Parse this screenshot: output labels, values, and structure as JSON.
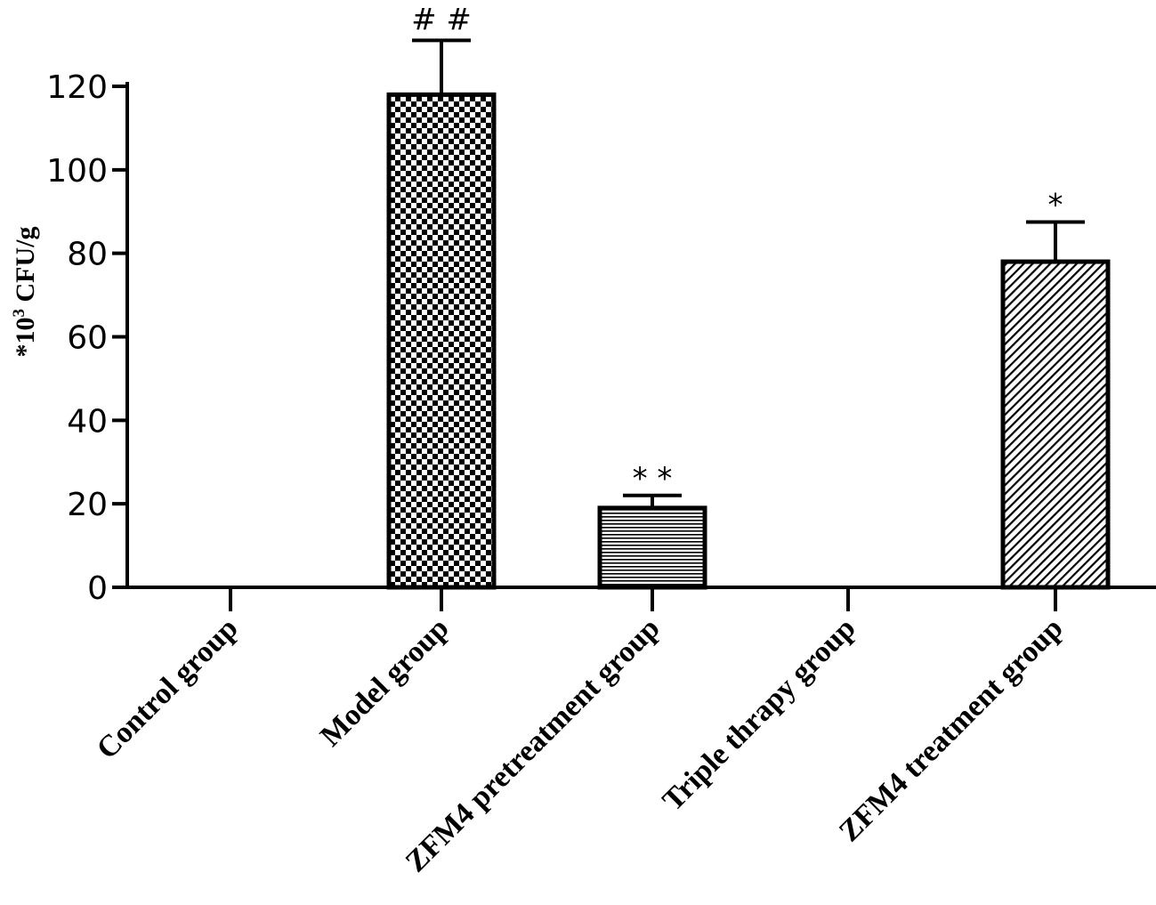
{
  "chart_data": {
    "type": "bar",
    "categories": [
      "Control group",
      "Model group",
      "ZFM4 pretreatment group",
      "Triple thrapy group",
      "ZFM4 treatment group"
    ],
    "values": [
      0,
      118,
      19,
      0,
      78
    ],
    "errors": [
      0,
      13,
      3,
      0,
      9.5
    ],
    "significance": [
      "",
      "# #",
      "* *",
      "",
      "*"
    ],
    "patterns": [
      "none",
      "checker",
      "horizontal-lines",
      "none",
      "diagonal-lines"
    ],
    "ylabel": "*10",
    "ylabel_sup": "3",
    "ylabel_unit": " CFU/g",
    "ylim": [
      0,
      120
    ],
    "yticks": [
      0,
      20,
      40,
      60,
      80,
      100,
      120
    ],
    "ytick_labels": [
      "0",
      "20",
      "40",
      "60",
      "80",
      "100",
      "120"
    ],
    "grid": false,
    "legend": "none",
    "colors": {
      "bar_stroke": "#000000",
      "bar_fill": "#ffffff",
      "axis": "#000000"
    }
  }
}
